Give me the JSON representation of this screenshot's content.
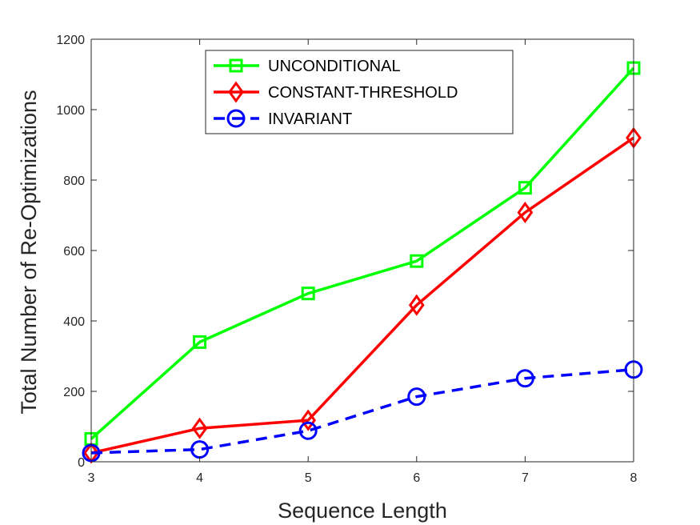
{
  "chart_data": {
    "type": "line",
    "title": "",
    "xlabel": "Sequence Length",
    "ylabel": "Total Number of Re-Optimizations",
    "x": [
      3,
      4,
      5,
      6,
      7,
      8
    ],
    "xlim": [
      3,
      8
    ],
    "ylim": [
      0,
      1200
    ],
    "xticks": [
      "3",
      "4",
      "5",
      "6",
      "7",
      "8"
    ],
    "yticks": [
      0,
      200,
      400,
      600,
      800,
      1000,
      1200
    ],
    "ytick_labels": [
      "0",
      "200",
      "400",
      "600",
      "800",
      "1000",
      "1200"
    ],
    "grid": false,
    "legend_position": "top-center",
    "series": [
      {
        "name": "UNCONDITIONAL",
        "values": [
          65,
          340,
          478,
          570,
          778,
          1118
        ],
        "color": "#00ff00",
        "marker": "square",
        "line_style": "solid"
      },
      {
        "name": "CONSTANT-THRESHOLD",
        "values": [
          25,
          95,
          118,
          445,
          708,
          920
        ],
        "color": "#ff0000",
        "marker": "diamond",
        "line_style": "solid"
      },
      {
        "name": "INVARIANT",
        "values": [
          25,
          35,
          88,
          185,
          237,
          262
        ],
        "color": "#0000ff",
        "marker": "circle",
        "line_style": "dashed"
      }
    ]
  }
}
